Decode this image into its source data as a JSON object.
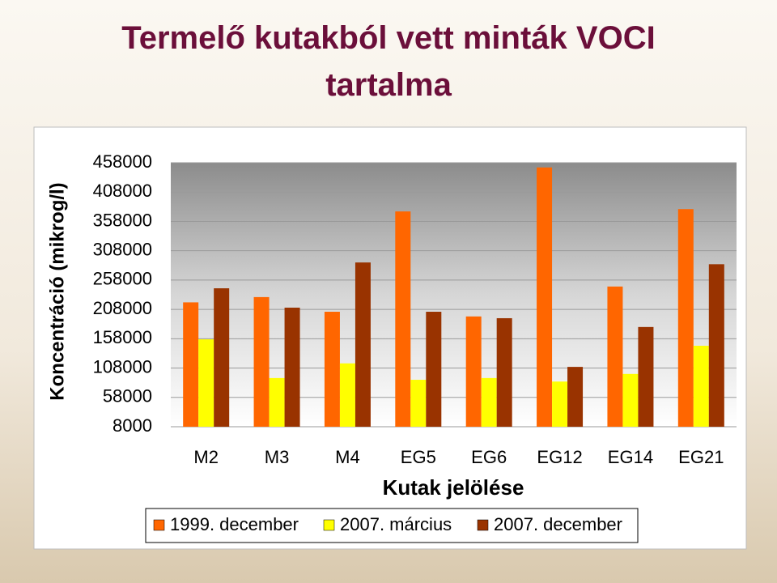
{
  "chart_data": {
    "type": "bar",
    "title": "Termelő kutakból vett minták VOCI tartalma",
    "xlabel": "Kutak jelölése",
    "ylabel": "Koncentráció (mikrog/l)",
    "categories": [
      "M2",
      "M3",
      "M4",
      "EG5",
      "EG6",
      "EG12",
      "EG14",
      "EG21"
    ],
    "series": [
      {
        "name": "1999. december",
        "color": "#ff6600",
        "values": [
          220000,
          229000,
          204000,
          375000,
          196000,
          450000,
          247000,
          379000
        ]
      },
      {
        "name": "2007. március",
        "color": "#ffff00",
        "values": [
          157000,
          91000,
          116000,
          88000,
          91000,
          85000,
          98000,
          146000
        ]
      },
      {
        "name": "2007. december",
        "color": "#993300",
        "values": [
          244000,
          211000,
          288000,
          204000,
          193000,
          110000,
          178000,
          285000
        ]
      }
    ],
    "ylim": [
      8000,
      458000
    ],
    "yticks": [
      8000,
      58000,
      108000,
      158000,
      208000,
      258000,
      308000,
      358000,
      408000,
      458000
    ],
    "grid": true
  }
}
